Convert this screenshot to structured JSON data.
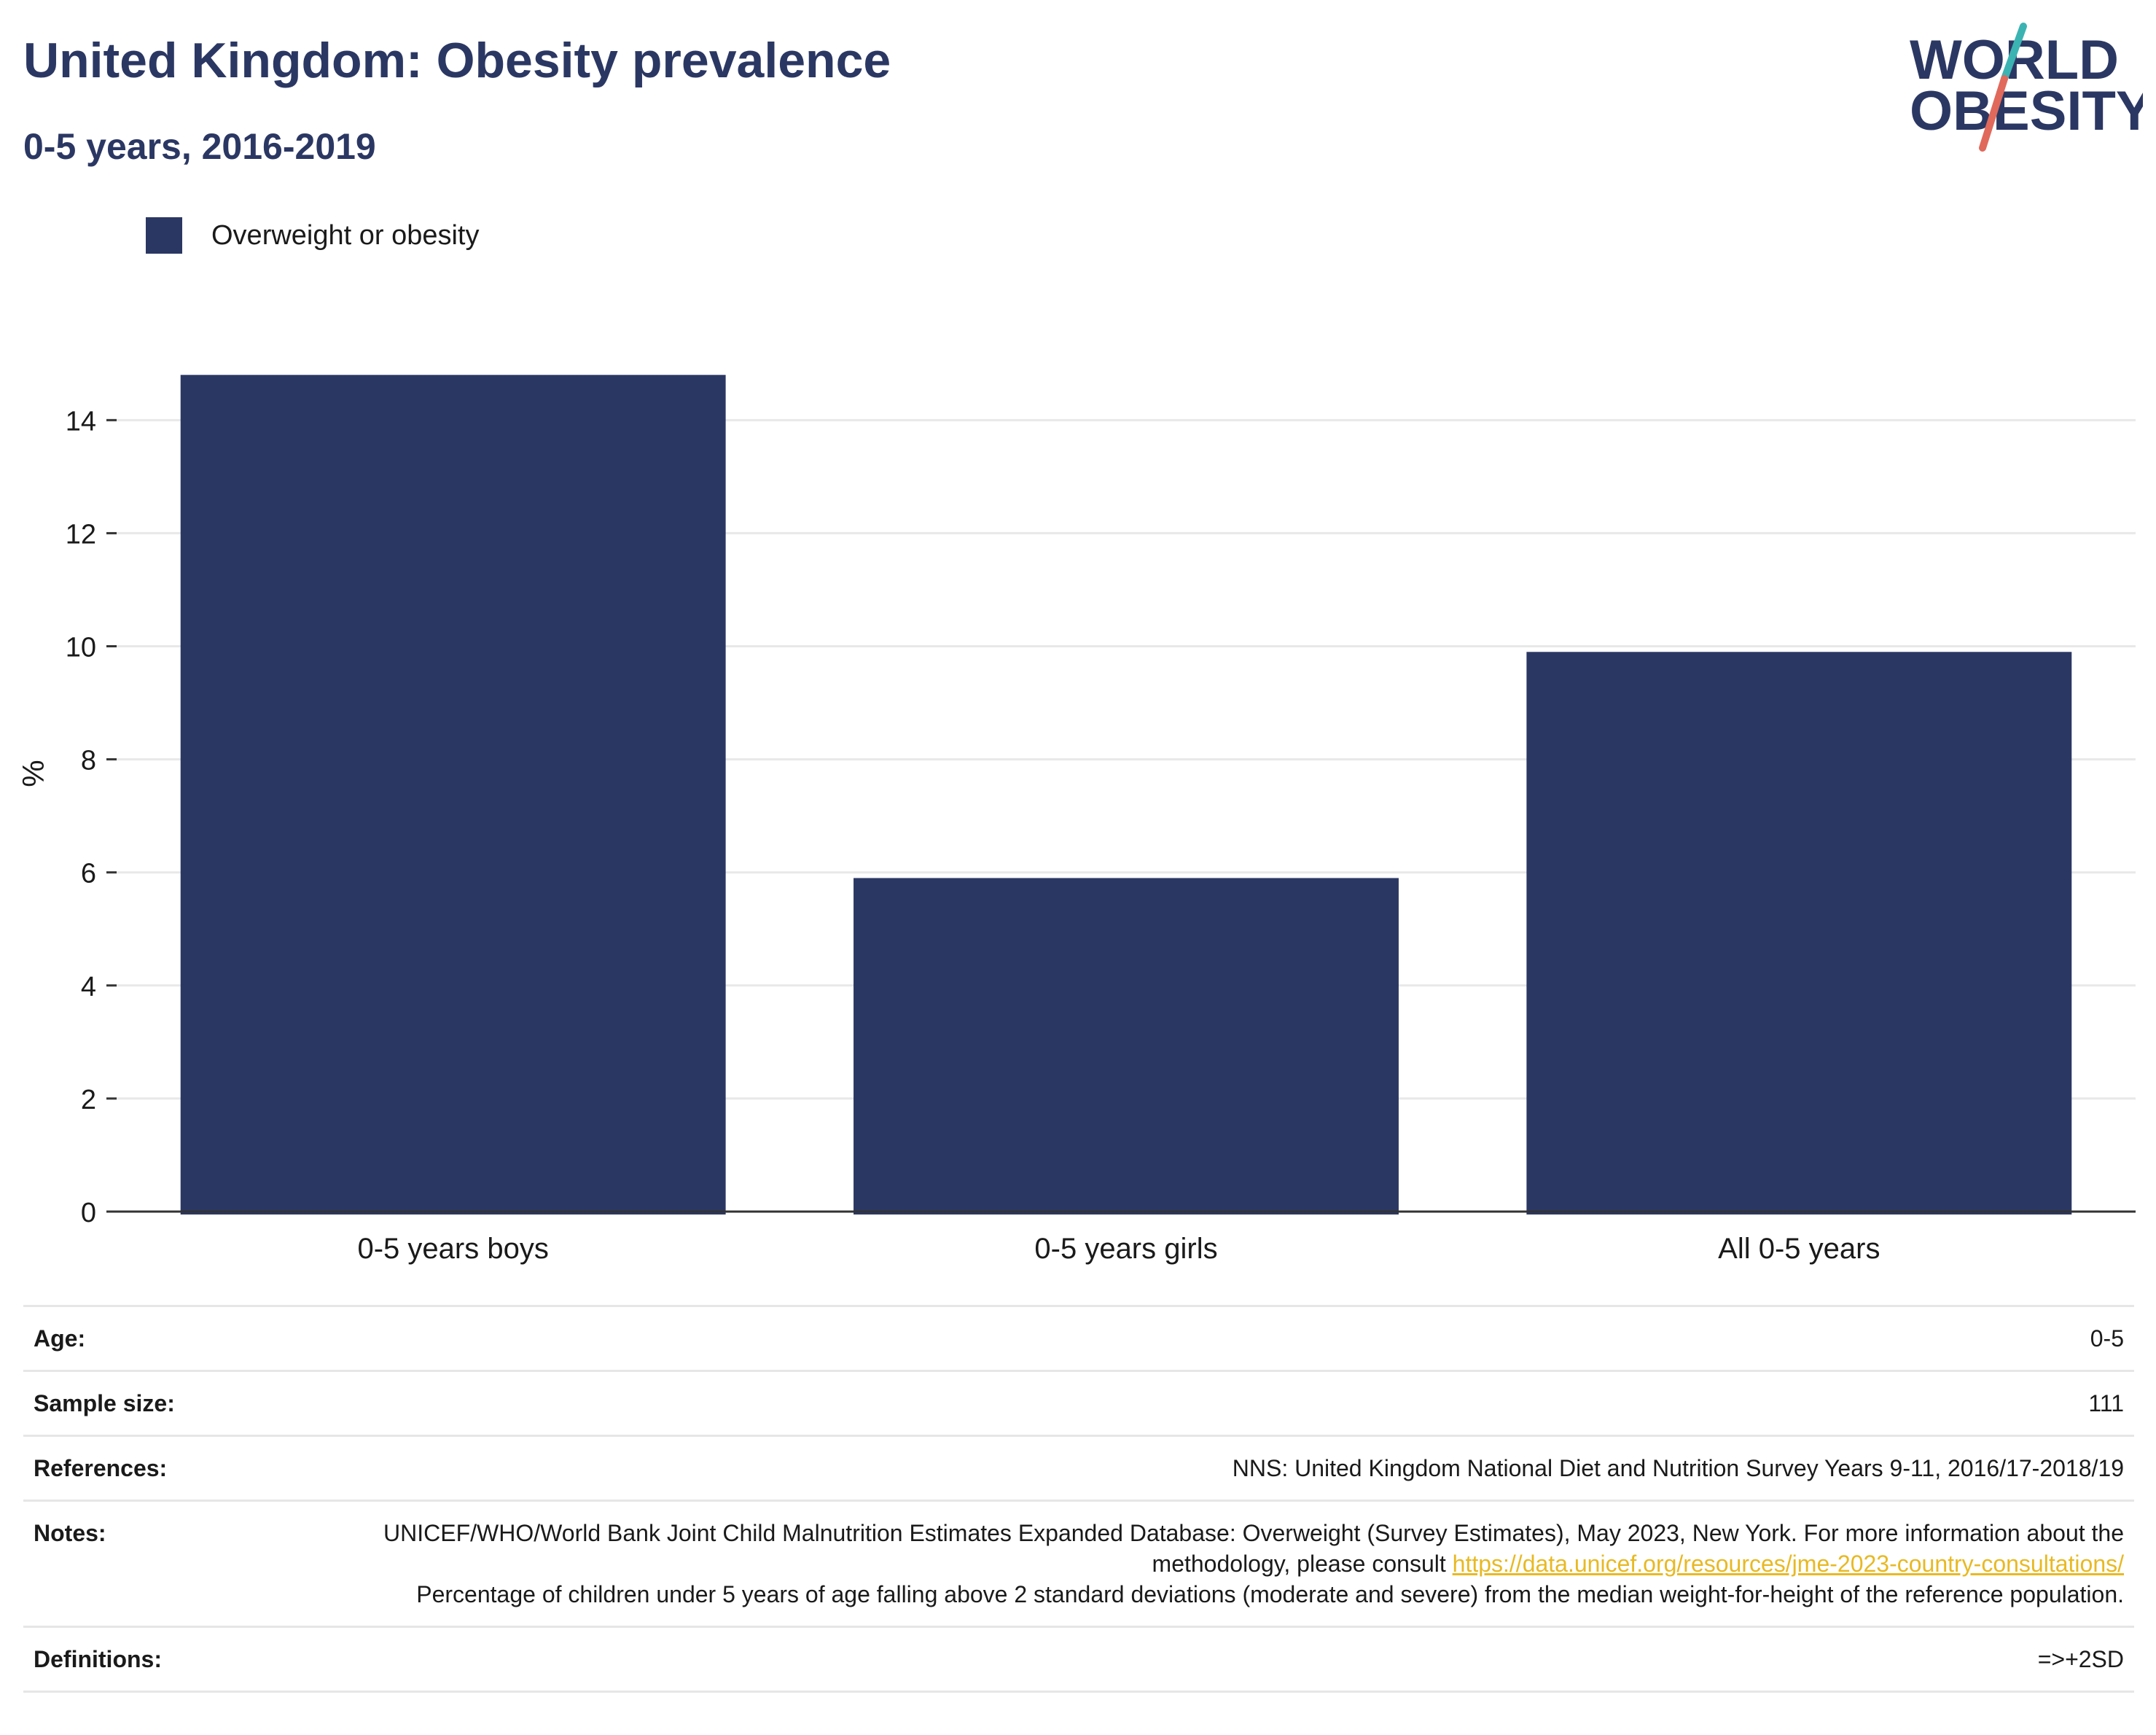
{
  "title": "United Kingdom: Obesity prevalence",
  "subtitle": "0-5 years, 2016-2019",
  "logo": {
    "line1": "WORLD",
    "line2": "OBESITY",
    "accent_teal": "#3bb3b3",
    "accent_red": "#e0695c"
  },
  "colors": {
    "bar": "#2b3763",
    "title": "#2b3763",
    "link": "#e8b923"
  },
  "chart_data": {
    "type": "bar",
    "categories": [
      "0-5 years boys",
      "0-5 years girls",
      "All 0-5 years"
    ],
    "series": [
      {
        "name": "Overweight or obesity",
        "values": [
          14.8,
          5.9,
          9.9
        ]
      }
    ],
    "ylabel": "%",
    "xlabel": "",
    "ylim": [
      0,
      15.5
    ],
    "yticks": [
      0,
      2,
      4,
      6,
      8,
      10,
      12,
      14
    ],
    "grid": true,
    "legend_position": "top-left"
  },
  "info": {
    "age": {
      "label": "Age:",
      "value": "0-5"
    },
    "sample": {
      "label": "Sample size:",
      "value": "111"
    },
    "references": {
      "label": "References:",
      "value": "NNS: United Kingdom National Diet and Nutrition Survey Years 9-11, 2016/17-2018/19"
    },
    "notes": {
      "label": "Notes:",
      "text1": "UNICEF/WHO/World Bank Joint Child Malnutrition Estimates Expanded Database: Overweight (Survey Estimates), May 2023, New York. For more information about the methodology, please consult ",
      "link": "https://data.unicef.org/resources/jme-2023-country-consultations/",
      "text2": "Percentage of children under 5 years of age falling above 2 standard deviations (moderate and severe) from the median weight-for-height of the reference population."
    },
    "definitions": {
      "label": "Definitions:",
      "value": "=>+2SD"
    }
  }
}
